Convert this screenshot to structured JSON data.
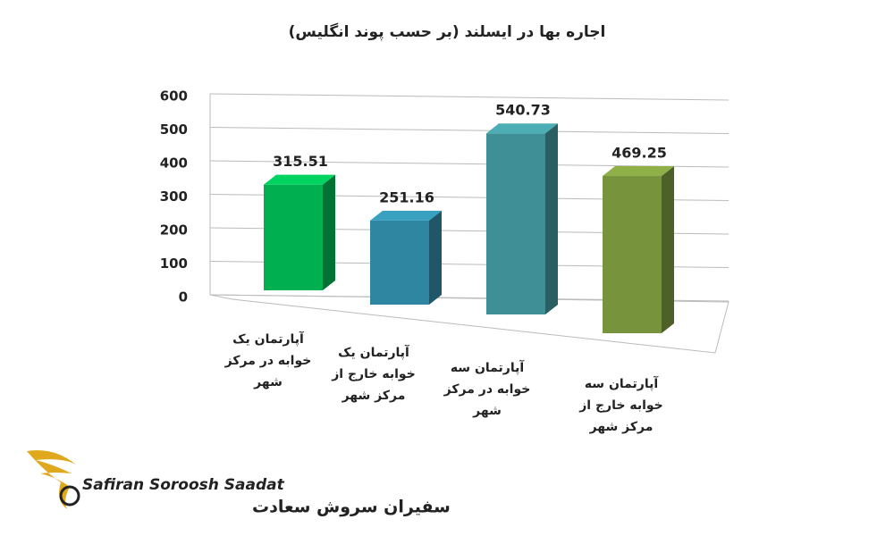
{
  "chart_data": {
    "type": "bar3d",
    "title": "اجاره بها در ایسلند (بر حسب پوند انگلیس)",
    "categories": [
      "آپارتمان یک خوابه در مرکز شهر",
      "آپارتمان یک خوابه خارج از مرکز شهر",
      "آپارتمان سه خوابه در مرکز شهر",
      "آپارتمان سه خوابه خارج از مرکز شهر"
    ],
    "values": [
      315.51,
      251.16,
      540.73,
      469.25
    ],
    "colors": [
      "#00b050",
      "#2f86a0",
      "#3f9096",
      "#77933c"
    ],
    "ylim": [
      0,
      600
    ],
    "yticks": [
      0,
      100,
      200,
      300,
      400,
      500,
      600
    ],
    "grid": true
  },
  "logo": {
    "name_en": "Safiran Soroosh Saadat",
    "name_fa": "سفیران سروش سعادت"
  }
}
